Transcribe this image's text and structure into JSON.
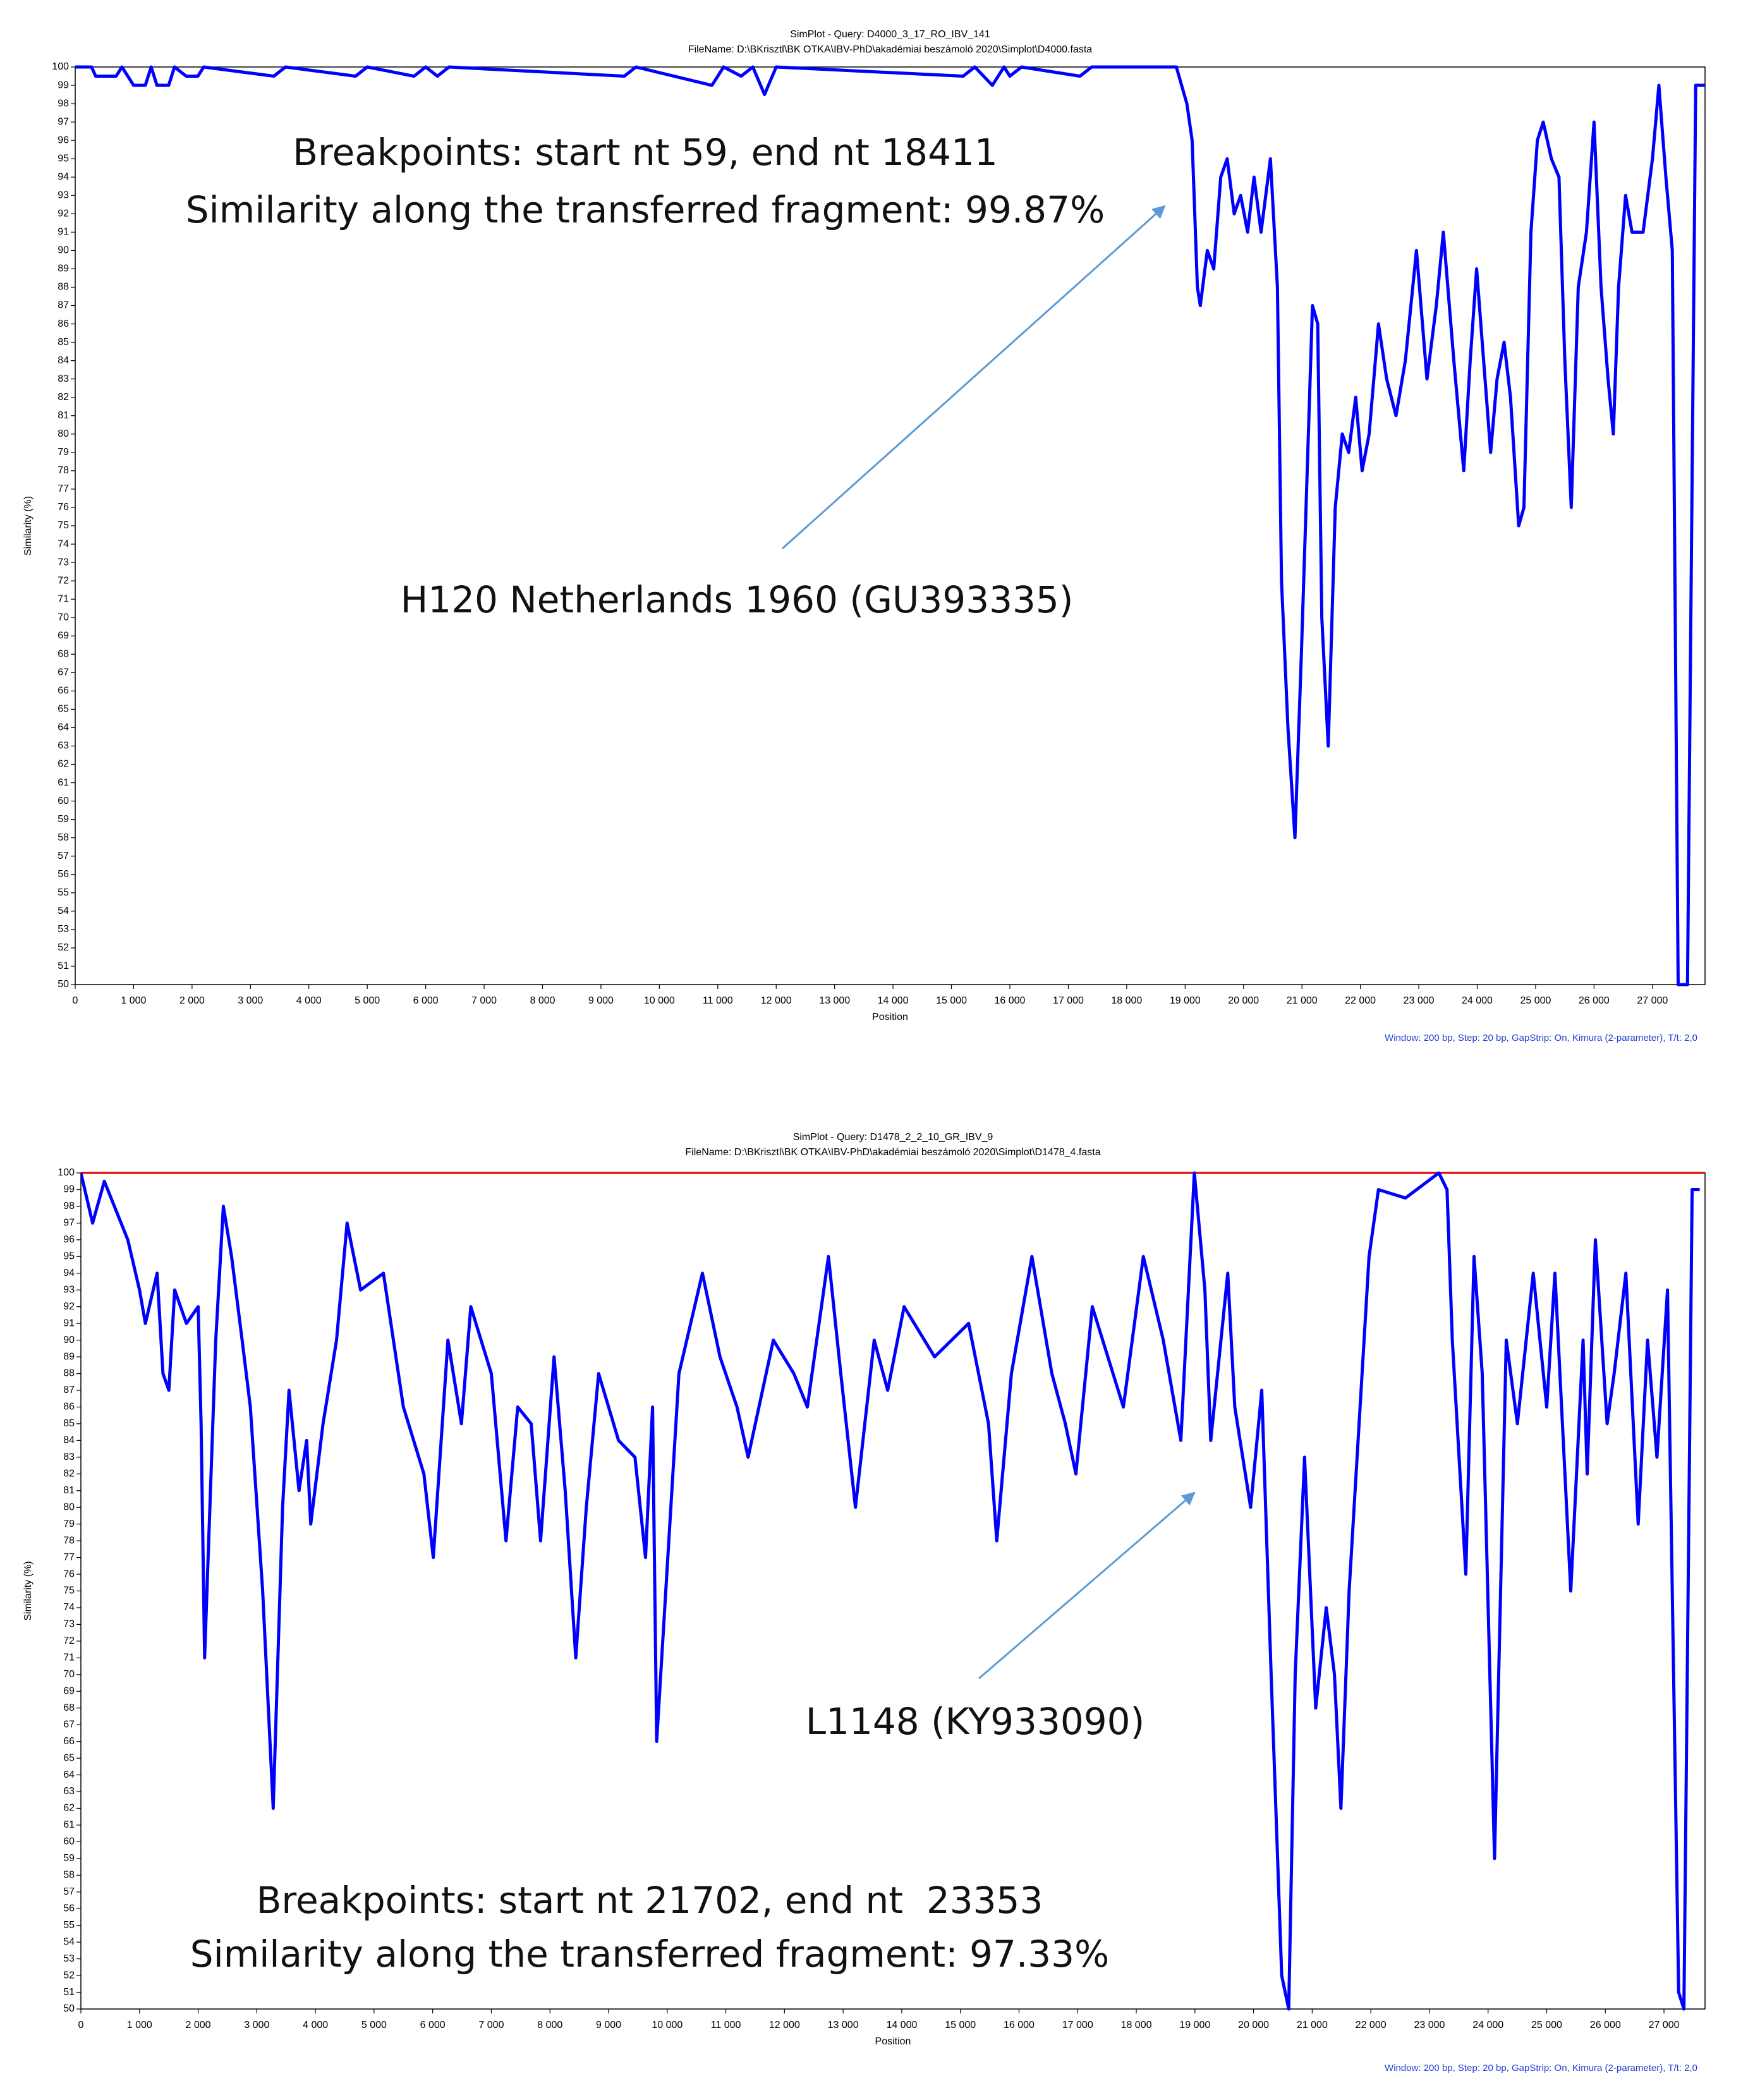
{
  "chart_data": [
    {
      "type": "line",
      "title": "SimPlot - Query: D4000_3_17_RO_IBV_141",
      "subtitle": "FileName: D:\\BKrisztl\\BK OTKA\\IBV-PhD\\akadémiai beszámoló 2020\\Simplot\\D4000.fasta",
      "x_label": "Position",
      "y_label": "Similarity (%)",
      "footnote": "Window: 200 bp, Step: 20 bp, GapStrip: On, Kimura (2-parameter), T/t: 2,0",
      "annotations": [
        "Breakpoints: start nt 59, end nt 18411",
        "Similarity along the transferred fragment: 99.87%",
        "H120 Netherlands 1960 (GU393335)"
      ],
      "xlim": [
        0,
        27900
      ],
      "ylim": [
        50,
        100
      ],
      "xticks": [
        0,
        {
          "value": 1000,
          "label": "1 000"
        },
        {
          "value": 2000,
          "label": "2 000"
        },
        {
          "value": 3000,
          "label": "3 000"
        },
        {
          "value": 4000,
          "label": "4 000"
        },
        {
          "value": 5000,
          "label": "5 000"
        },
        {
          "value": 6000,
          "label": "6 000"
        },
        {
          "value": 7000,
          "label": "7 000"
        },
        {
          "value": 8000,
          "label": "8 000"
        },
        {
          "value": 9000,
          "label": "9 000"
        },
        {
          "value": 10000,
          "label": "10 000"
        },
        {
          "value": 11000,
          "label": "11 000"
        },
        {
          "value": 12000,
          "label": "12 000"
        },
        {
          "value": 13000,
          "label": "13 000"
        },
        {
          "value": 14000,
          "label": "14 000"
        },
        {
          "value": 15000,
          "label": "15 000"
        },
        {
          "value": 16000,
          "label": "16 000"
        },
        {
          "value": 17000,
          "label": "17 000"
        },
        {
          "value": 18000,
          "label": "18 000"
        },
        {
          "value": 19000,
          "label": "19 000"
        },
        {
          "value": 20000,
          "label": "20 000"
        },
        {
          "value": 21000,
          "label": "21 000"
        },
        {
          "value": 22000,
          "label": "22 000"
        },
        {
          "value": 23000,
          "label": "23 000"
        },
        {
          "value": 24000,
          "label": "24 000"
        },
        {
          "value": 25000,
          "label": "25 000"
        },
        {
          "value": 26000,
          "label": "26 000"
        },
        {
          "value": 27000,
          "label": "27 000"
        }
      ],
      "yticks": [
        50,
        51,
        52,
        53,
        54,
        55,
        56,
        57,
        58,
        59,
        60,
        61,
        62,
        63,
        64,
        65,
        66,
        67,
        68,
        69,
        70,
        71,
        72,
        73,
        74,
        75,
        76,
        77,
        78,
        79,
        80,
        81,
        82,
        83,
        84,
        85,
        86,
        87,
        88,
        89,
        90,
        91,
        92,
        93,
        94,
        95,
        96,
        97,
        98,
        99,
        100
      ],
      "grid": false,
      "x": [
        0,
        280,
        350,
        700,
        800,
        1000,
        1200,
        1300,
        1400,
        1600,
        1700,
        1900,
        2100,
        2200,
        3400,
        3600,
        4800,
        5000,
        5800,
        6000,
        6200,
        6400,
        9400,
        9600,
        10900,
        11100,
        11400,
        11600,
        11800,
        12000,
        15200,
        15400,
        15700,
        15900,
        16000,
        16200,
        17200,
        17400,
        18850,
        19030,
        19120,
        19210,
        19260,
        19380,
        19490,
        19610,
        19720,
        19840,
        19950,
        20070,
        20180,
        20300,
        20460,
        20580,
        20650,
        20760,
        20880,
        20990,
        21110,
        21180,
        21270,
        21340,
        21450,
        21570,
        21690,
        21800,
        21920,
        22030,
        22150,
        22310,
        22450,
        22610,
        22770,
        22960,
        23140,
        23300,
        23420,
        23600,
        23770,
        23880,
        23990,
        24110,
        24230,
        24340,
        24460,
        24570,
        24710,
        24800,
        24920,
        25030,
        25130,
        25270,
        25400,
        25500,
        25610,
        25730,
        25870,
        26000,
        26120,
        26240,
        26330,
        26420,
        26540,
        26650,
        26840,
        27000,
        27110,
        27230,
        27340,
        27440,
        27600,
        27740,
        27900
      ],
      "series": [
        {
          "color": "#0000ff",
          "values": [
            100,
            100,
            99.5,
            99.5,
            100,
            99,
            99,
            100,
            99,
            99,
            100,
            99.5,
            99.5,
            100,
            99.5,
            100,
            99.5,
            100,
            99.5,
            100,
            99.5,
            100,
            99.5,
            100,
            99,
            100,
            99.5,
            100,
            98.5,
            100,
            99.5,
            100,
            99,
            100,
            99.5,
            100,
            99.5,
            100,
            100,
            98,
            96,
            88,
            87,
            90,
            89,
            94,
            95,
            92,
            93,
            91,
            94,
            91,
            95,
            88,
            72,
            64,
            58,
            68,
            80,
            87,
            86,
            70,
            63,
            76,
            80,
            79,
            82,
            78,
            80,
            86,
            83,
            81,
            84,
            90,
            83,
            87,
            91,
            84,
            78,
            84,
            89,
            84,
            79,
            83,
            85,
            82,
            75,
            76,
            91,
            96,
            97,
            95,
            94,
            84,
            76,
            88,
            91,
            97,
            88,
            83,
            80,
            88,
            93,
            91,
            91,
            95,
            99,
            94,
            90,
            50,
            50,
            99,
            99
          ]
        }
      ]
    },
    {
      "type": "line",
      "title": "SimPlot - Query: D1478_2_2_10_GR_IBV_9",
      "subtitle": "FileName: D:\\BKrisztl\\BK OTKA\\IBV-PhD\\akadémiai beszámoló 2020\\Simplot\\D1478_4.fasta",
      "x_label": "Position",
      "y_label": "Similarity (%)",
      "footnote": "Window: 200 bp, Step: 20 bp, GapStrip: On, Kimura (2-parameter), T/t: 2,0",
      "annotations": [
        "L1148 (KY933090)",
        "Breakpoints: start nt 21702, end nt  23353",
        "Similarity along the transferred fragment: 97.33%"
      ],
      "xlim": [
        0,
        27700
      ],
      "ylim": [
        50,
        100
      ],
      "xticks": [
        0,
        {
          "value": 1000,
          "label": "1 000"
        },
        {
          "value": 2000,
          "label": "2 000"
        },
        {
          "value": 3000,
          "label": "3 000"
        },
        {
          "value": 4000,
          "label": "4 000"
        },
        {
          "value": 5000,
          "label": "5 000"
        },
        {
          "value": 6000,
          "label": "6 000"
        },
        {
          "value": 7000,
          "label": "7 000"
        },
        {
          "value": 8000,
          "label": "8 000"
        },
        {
          "value": 9000,
          "label": "9 000"
        },
        {
          "value": 10000,
          "label": "10 000"
        },
        {
          "value": 11000,
          "label": "11 000"
        },
        {
          "value": 12000,
          "label": "12 000"
        },
        {
          "value": 13000,
          "label": "13 000"
        },
        {
          "value": 14000,
          "label": "14 000"
        },
        {
          "value": 15000,
          "label": "15 000"
        },
        {
          "value": 16000,
          "label": "16 000"
        },
        {
          "value": 17000,
          "label": "17 000"
        },
        {
          "value": 18000,
          "label": "18 000"
        },
        {
          "value": 19000,
          "label": "19 000"
        },
        {
          "value": 20000,
          "label": "20 000"
        },
        {
          "value": 21000,
          "label": "21 000"
        },
        {
          "value": 22000,
          "label": "22 000"
        },
        {
          "value": 23000,
          "label": "23 000"
        },
        {
          "value": 24000,
          "label": "24 000"
        },
        {
          "value": 25000,
          "label": "25 000"
        },
        {
          "value": 26000,
          "label": "26 000"
        },
        {
          "value": 27000,
          "label": "27 000"
        }
      ],
      "yticks": [
        50,
        51,
        52,
        53,
        54,
        55,
        56,
        57,
        58,
        59,
        60,
        61,
        62,
        63,
        64,
        65,
        66,
        67,
        68,
        69,
        70,
        71,
        72,
        73,
        74,
        75,
        76,
        77,
        78,
        79,
        80,
        81,
        82,
        83,
        84,
        85,
        86,
        87,
        88,
        89,
        90,
        91,
        92,
        93,
        94,
        95,
        96,
        97,
        98,
        99,
        100
      ],
      "grid": false,
      "x": [
        0,
        200,
        400,
        800,
        1000,
        1100,
        1300,
        1400,
        1500,
        1600,
        1800,
        2000,
        2050,
        2110,
        2300,
        2430,
        2570,
        2750,
        2890,
        3100,
        3280,
        3440,
        3550,
        3720,
        3850,
        3920,
        4130,
        4360,
        4540,
        4770,
        5160,
        5500,
        5850,
        6010,
        6260,
        6490,
        6650,
        7000,
        7250,
        7450,
        7680,
        7840,
        8070,
        8260,
        8440,
        8620,
        8830,
        9170,
        9450,
        9630,
        9750,
        9820,
        10200,
        10600,
        10900,
        11190,
        11380,
        11810,
        12160,
        12390,
        12750,
        12960,
        13210,
        13530,
        13760,
        14040,
        14560,
        15140,
        15480,
        15620,
        15870,
        16220,
        16560,
        16790,
        16970,
        17250,
        17780,
        18120,
        18460,
        18760,
        18990,
        19170,
        19270,
        19560,
        19680,
        19950,
        20140,
        20300,
        20480,
        20600,
        20710,
        20870,
        21060,
        21240,
        21380,
        21490,
        21630,
        21970,
        22130,
        22590,
        23160,
        23300,
        23390,
        23620,
        23760,
        23900,
        24110,
        24310,
        24500,
        24770,
        25000,
        25140,
        25410,
        25620,
        25690,
        25830,
        26030,
        26150,
        26350,
        26560,
        26720,
        26880,
        27060,
        27250,
        27340,
        27480,
        27610
      ],
      "series": [
        {
          "color": "#0000ff",
          "values": [
            100,
            97,
            99.5,
            96,
            93,
            91,
            94,
            88,
            87,
            93,
            91,
            92,
            85,
            71,
            90,
            98,
            95,
            90,
            86,
            75,
            62,
            80,
            87,
            81,
            84,
            79,
            85,
            90,
            97,
            93,
            94,
            86,
            82,
            77,
            90,
            85,
            92,
            88,
            78,
            86,
            85,
            78,
            89,
            81,
            71,
            80,
            88,
            84,
            83,
            77,
            86,
            66,
            88,
            94,
            89,
            86,
            83,
            90,
            88,
            86,
            95,
            88,
            80,
            90,
            87,
            92,
            89,
            91,
            85,
            78,
            88,
            95,
            88,
            85,
            82,
            92,
            86,
            95,
            90,
            84,
            100,
            93,
            84,
            94,
            86,
            80,
            87,
            70,
            52,
            50,
            70,
            83,
            68,
            74,
            70,
            62,
            75,
            95,
            99,
            98.5,
            100,
            99,
            90,
            76,
            95,
            88,
            59,
            90,
            85,
            94,
            86,
            94,
            75,
            90,
            82,
            96,
            85,
            88,
            94,
            79,
            90,
            83,
            93,
            51,
            50,
            99,
            99
          ]
        }
      ]
    }
  ]
}
